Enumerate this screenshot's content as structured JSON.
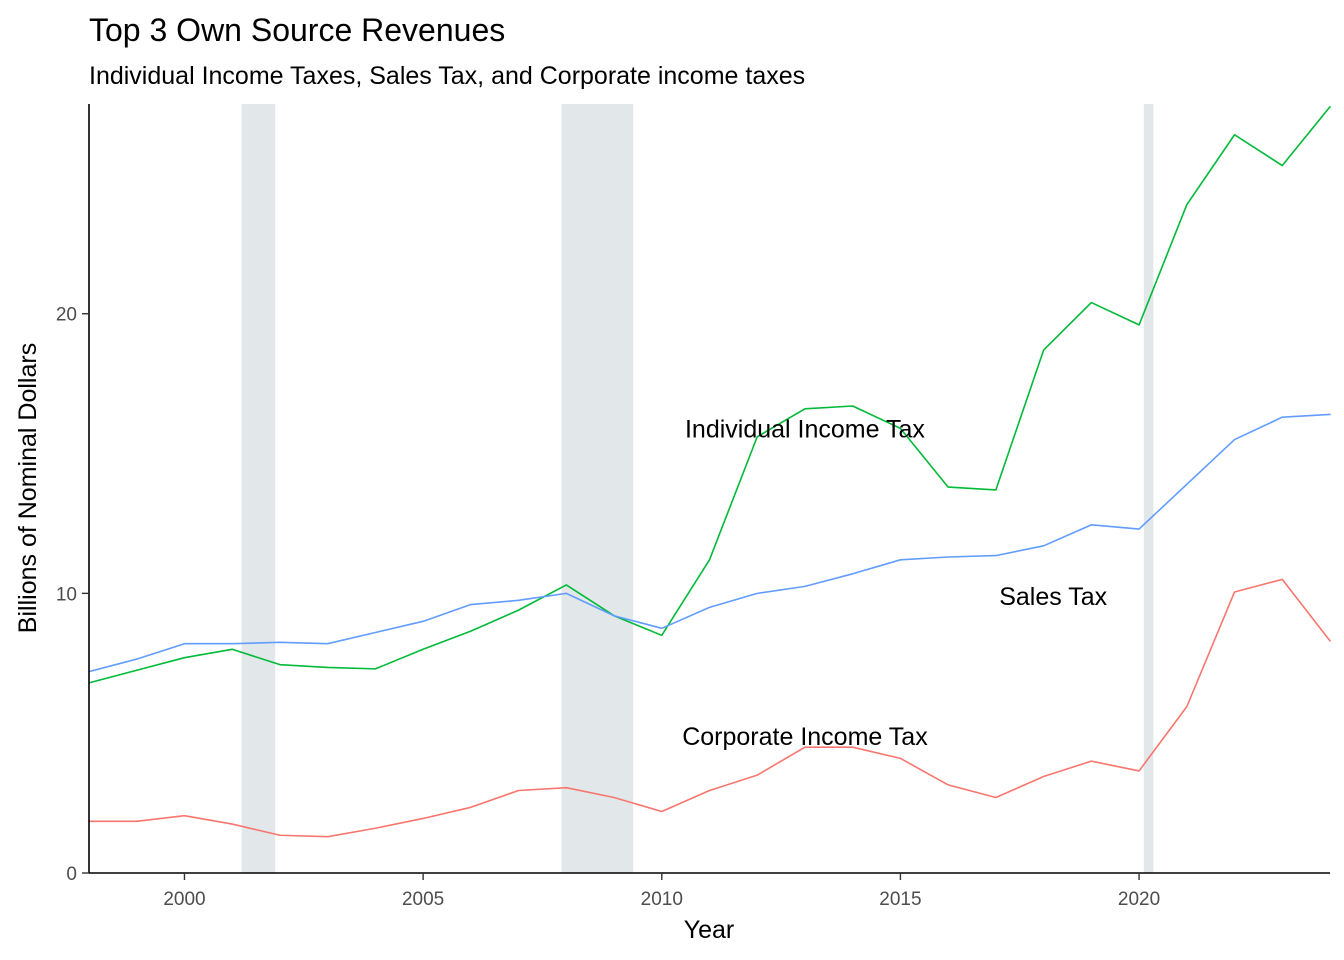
{
  "colors": {
    "individual": "#00BA38",
    "sales": "#619CFF",
    "corporate": "#F8766D",
    "recession": "#E2E7EA"
  },
  "chart_data": {
    "type": "line",
    "title": "Top 3 Own Source Revenues",
    "subtitle": "Individual Income Taxes, Sales Tax, and Corporate income taxes",
    "xlabel": "Year",
    "ylabel": "Billions of Nominal Dollars",
    "xlim": [
      1998,
      2024
    ],
    "ylim": [
      0,
      27.5
    ],
    "x_ticks": [
      2000,
      2005,
      2010,
      2015,
      2020
    ],
    "y_ticks": [
      0,
      10,
      20
    ],
    "grid": false,
    "legend": "none",
    "recession_bands": [
      [
        2001.2,
        2001.9
      ],
      [
        2007.9,
        2009.4
      ],
      [
        2020.1,
        2020.3
      ]
    ],
    "x": [
      1998,
      1999,
      2000,
      2001,
      2002,
      2003,
      2004,
      2005,
      2006,
      2007,
      2008,
      2009,
      2010,
      2011,
      2012,
      2013,
      2014,
      2015,
      2016,
      2017,
      2018,
      2019,
      2020,
      2021,
      2022,
      2023,
      2024
    ],
    "series": [
      {
        "name": "Individual Income Tax",
        "color_key": "individual",
        "values": [
          6.8,
          7.25,
          7.7,
          8.0,
          7.45,
          7.35,
          7.3,
          8.0,
          8.65,
          9.4,
          10.3,
          9.2,
          8.5,
          11.2,
          15.6,
          16.6,
          16.7,
          15.9,
          13.8,
          13.7,
          18.7,
          20.4,
          19.6,
          23.9,
          26.4,
          25.3,
          27.4
        ],
        "label": "Individual Income Tax",
        "label_pos": [
          2013,
          15.9
        ]
      },
      {
        "name": "Sales Tax",
        "color_key": "sales",
        "values": [
          7.2,
          7.65,
          8.2,
          8.2,
          8.25,
          8.2,
          8.6,
          9.0,
          9.6,
          9.75,
          10.0,
          9.2,
          8.75,
          9.5,
          10.0,
          10.25,
          10.7,
          11.2,
          11.3,
          11.35,
          11.7,
          12.45,
          12.3,
          13.9,
          15.5,
          16.3,
          16.4
        ],
        "label": "Sales Tax",
        "label_pos": [
          2018.2,
          9.9
        ]
      },
      {
        "name": "Corporate Income Tax",
        "color_key": "corporate",
        "values": [
          1.85,
          1.85,
          2.05,
          1.75,
          1.35,
          1.3,
          1.6,
          1.95,
          2.35,
          2.95,
          3.05,
          2.7,
          2.2,
          2.95,
          3.5,
          4.5,
          4.5,
          4.1,
          3.15,
          2.7,
          3.45,
          4.0,
          3.65,
          5.95,
          10.05,
          10.5,
          8.3
        ],
        "label": "Corporate Income Tax",
        "label_pos": [
          2013,
          4.9
        ]
      }
    ]
  }
}
